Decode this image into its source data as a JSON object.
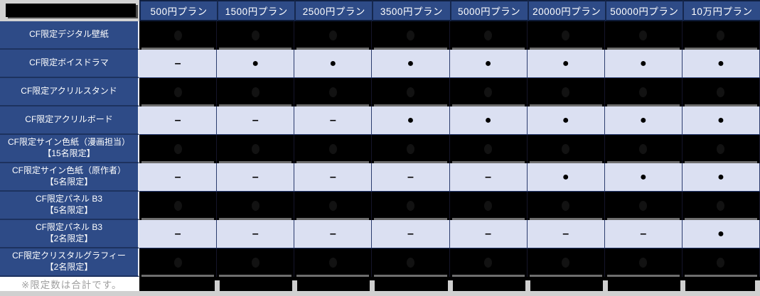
{
  "colors": {
    "header_blue": "#2e4b87",
    "light_row": "#dbe0f2",
    "redacted_black": "#000000",
    "grid_line": "#22356b",
    "footnote_gray": "#a0a0a0",
    "mark_color": "#000000"
  },
  "table": {
    "columns": [
      "500円プラン",
      "1500円プラン",
      "2500円プラン",
      "3500円プラン",
      "5000円プラン",
      "20000円プラン",
      "50000円プラン",
      "10万円プラン"
    ],
    "rows": [
      {
        "label": "CF限定デジタル壁紙",
        "label2": "",
        "redacted": true,
        "marks": [
          "",
          "",
          "",
          "",
          "",
          "",
          "",
          ""
        ]
      },
      {
        "label": "CF限定ボイスドラマ",
        "label2": "",
        "redacted": false,
        "marks": [
          "–",
          "●",
          "●",
          "●",
          "●",
          "●",
          "●",
          "●"
        ]
      },
      {
        "label": "CF限定アクリルスタンド",
        "label2": "",
        "redacted": true,
        "marks": [
          "",
          "",
          "",
          "",
          "",
          "",
          "",
          ""
        ]
      },
      {
        "label": "CF限定アクリルボード",
        "label2": "",
        "redacted": false,
        "marks": [
          "–",
          "–",
          "–",
          "●",
          "●",
          "●",
          "●",
          "●"
        ]
      },
      {
        "label": "CF限定サイン色紙（漫画担当）",
        "label2": "【15名限定】",
        "redacted": true,
        "marks": [
          "",
          "",
          "",
          "",
          "",
          "",
          "",
          ""
        ]
      },
      {
        "label": "CF限定サイン色紙（原作者）",
        "label2": "【5名限定】",
        "redacted": false,
        "marks": [
          "–",
          "–",
          "–",
          "–",
          "–",
          "●",
          "●",
          "●"
        ]
      },
      {
        "label": "CF限定パネル B3",
        "label2": "【5名限定】",
        "redacted": true,
        "marks": [
          "",
          "",
          "",
          "",
          "",
          "",
          "",
          ""
        ]
      },
      {
        "label": "CF限定パネル B3",
        "label2": "【2名限定】",
        "redacted": false,
        "marks": [
          "–",
          "–",
          "–",
          "–",
          "–",
          "–",
          "–",
          "●"
        ]
      },
      {
        "label": "CF限定クリスタルグラフィー",
        "label2": "【2名限定】",
        "redacted": true,
        "marks": [
          "",
          "",
          "",
          "",
          "",
          "",
          "",
          ""
        ]
      }
    ],
    "footnote": "※限定数は合計です。"
  },
  "chart_data": {
    "type": "table",
    "title": "",
    "columns": [
      "500円プラン",
      "1500円プラン",
      "2500円プラン",
      "3500円プラン",
      "5000円プラン",
      "20000円プラン",
      "50000円プラン",
      "10万円プラン"
    ],
    "rows": [
      {
        "item": "CF限定デジタル壁紙",
        "redacted": true,
        "values": [
          "",
          "",
          "",
          "",
          "",
          "",
          "",
          ""
        ]
      },
      {
        "item": "CF限定ボイスドラマ",
        "redacted": false,
        "values": [
          "–",
          "●",
          "●",
          "●",
          "●",
          "●",
          "●",
          "●"
        ]
      },
      {
        "item": "CF限定アクリルスタンド",
        "redacted": true,
        "values": [
          "",
          "",
          "",
          "",
          "",
          "",
          "",
          ""
        ]
      },
      {
        "item": "CF限定アクリルボード",
        "redacted": false,
        "values": [
          "–",
          "–",
          "–",
          "●",
          "●",
          "●",
          "●",
          "●"
        ]
      },
      {
        "item": "CF限定サイン色紙（漫画担当）【15名限定】",
        "redacted": true,
        "values": [
          "",
          "",
          "",
          "",
          "",
          "",
          "",
          ""
        ]
      },
      {
        "item": "CF限定サイン色紙（原作者）【5名限定】",
        "redacted": false,
        "values": [
          "–",
          "–",
          "–",
          "–",
          "–",
          "●",
          "●",
          "●"
        ]
      },
      {
        "item": "CF限定パネル B3【5名限定】",
        "redacted": true,
        "values": [
          "",
          "",
          "",
          "",
          "",
          "",
          "",
          ""
        ]
      },
      {
        "item": "CF限定パネル B3【2名限定】",
        "redacted": false,
        "values": [
          "–",
          "–",
          "–",
          "–",
          "–",
          "–",
          "–",
          "●"
        ]
      },
      {
        "item": "CF限定クリスタルグラフィー【2名限定】",
        "redacted": true,
        "values": [
          "",
          "",
          "",
          "",
          "",
          "",
          "",
          ""
        ]
      }
    ],
    "footnote": "※限定数は合計です。"
  }
}
